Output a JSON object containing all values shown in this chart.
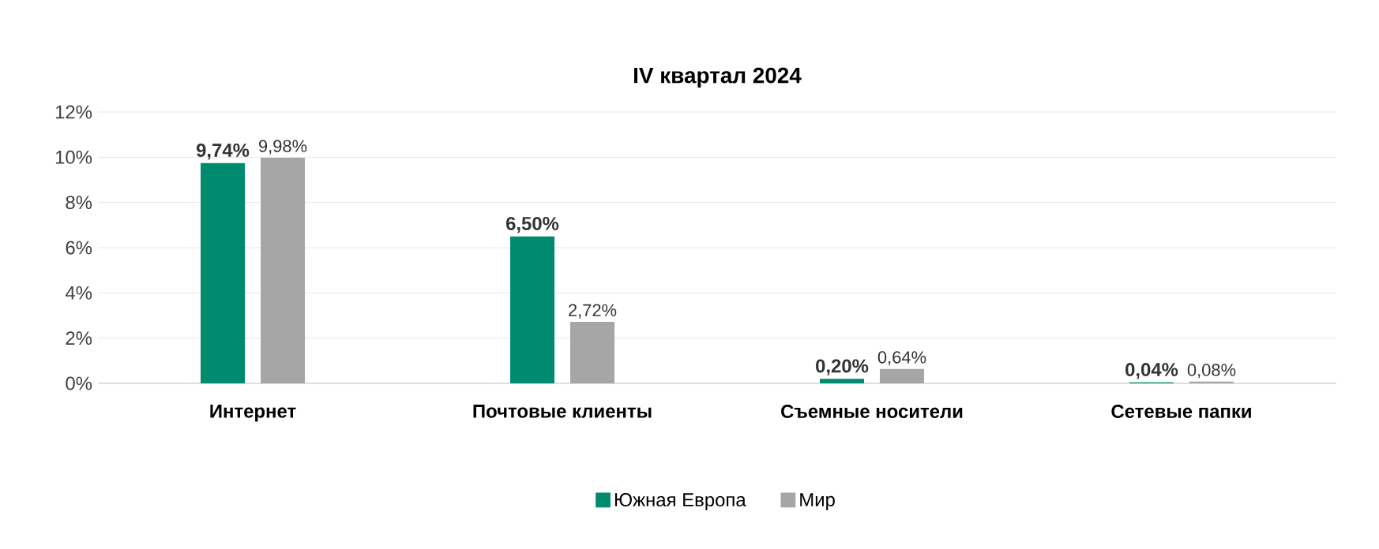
{
  "chart_data": {
    "type": "bar",
    "title": "IV квартал 2024",
    "categories": [
      "Интернет",
      "Почтовые клиенты",
      "Съемные носители",
      "Сетевые папки"
    ],
    "series": [
      {
        "name": "Южная Европа",
        "color": "#008a6e",
        "values": [
          9.74,
          6.5,
          0.2,
          0.04
        ],
        "value_labels": [
          "9,74%",
          "6,50%",
          "0,20%",
          "0,04%"
        ]
      },
      {
        "name": "Мир",
        "color": "#a6a6a6",
        "values": [
          9.98,
          2.72,
          0.64,
          0.08
        ],
        "value_labels": [
          "9,98%",
          "2,72%",
          "0,64%",
          "0,08%"
        ]
      }
    ],
    "ylim": [
      0,
      12
    ],
    "yticks": [
      {
        "value": 0,
        "label": "0%"
      },
      {
        "value": 2,
        "label": "2%"
      },
      {
        "value": 4,
        "label": "4%"
      },
      {
        "value": 6,
        "label": "6%"
      },
      {
        "value": 8,
        "label": "8%"
      },
      {
        "value": 10,
        "label": "10%"
      },
      {
        "value": 12,
        "label": "12%"
      }
    ],
    "grid": "y",
    "legend": "bottom"
  }
}
